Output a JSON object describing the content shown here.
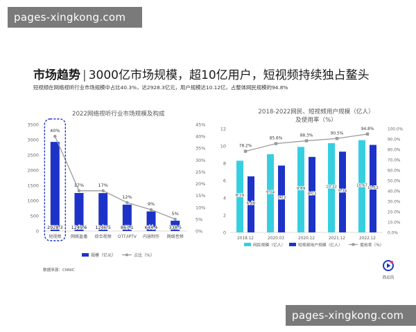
{
  "watermark_top": "pages-xingkong.com",
  "watermark_bottom": "pages-xingkong.com",
  "heading": {
    "bold": "市场趋势",
    "sep": "|",
    "rest": "3000亿市场规模，超10亿用户，短视频持续独占鳌头"
  },
  "subheading": "短视频在网络视听行业市场规模中占比40.3%，达2928.3亿元，用户规模达10.12亿，占整体网民规模的94.8%",
  "source": "数据来源：CNNIC",
  "logo_text": "西瓜风",
  "colors": {
    "cyan": "#36cfe0",
    "navy": "#1d33c8",
    "gray": "#9a9a9a",
    "highlight": "#1d33c8"
  },
  "chart_data": [
    {
      "type": "bar+line",
      "title": "2022网络视听行业市场规模及构成",
      "categories": [
        "短视频",
        "网络直播",
        "综合视频",
        "OTT/IPTV",
        "内容制作",
        "网络音频"
      ],
      "series": [
        {
          "name": "规模（亿元）",
          "type": "bar",
          "axis": "left",
          "values": [
            2928.3,
            1249.6,
            1246.5,
            867.1,
            644.4,
            338.5
          ],
          "labels": [
            "2928.3",
            "1249.6",
            "1246.5",
            "867.1",
            "644.4",
            "338.5"
          ]
        },
        {
          "name": "占比（%）",
          "type": "line",
          "axis": "right",
          "values": [
            40,
            17,
            17,
            12,
            9,
            5
          ],
          "labels": [
            "40%",
            "17%",
            "17%",
            "12%",
            "9%",
            "5%"
          ]
        }
      ],
      "ylim": [
        0,
        3500
      ],
      "yticks": [
        "0",
        "500",
        "1000",
        "1500",
        "2000",
        "2500",
        "3000",
        "3500"
      ],
      "y2lim": [
        0,
        45
      ],
      "y2ticks": [
        "0%",
        "5%",
        "10%",
        "15%",
        "20%",
        "25%",
        "30%",
        "35%",
        "40%",
        "45%"
      ],
      "highlight_category": "短视频",
      "legend_position": "bottom",
      "grid": false
    },
    {
      "type": "bar+line",
      "title": "2018-2022网民、短视频用户规模（亿人）及使用率（%）",
      "categories": [
        "2018.12",
        "2020.03",
        "2020.12",
        "2021.12",
        "2022.12"
      ],
      "series": [
        {
          "name": "网民规模（亿人）",
          "type": "bar",
          "axis": "left",
          "values": [
            8.29,
            9.04,
            9.89,
            10.32,
            10.67
          ],
          "labels": [
            "8.29",
            "9.04",
            "9.89",
            "10.32",
            "10.67"
          ]
        },
        {
          "name": "短视频用户规模（亿人）",
          "type": "bar",
          "axis": "left",
          "values": [
            6.48,
            7.73,
            8.73,
            9.34,
            10.12
          ],
          "labels": [
            "6.48",
            "7.73",
            "8.73",
            "9.34",
            "10.12"
          ]
        },
        {
          "name": "使用率（%）",
          "type": "line",
          "axis": "right",
          "values": [
            78.2,
            85.6,
            88.3,
            90.5,
            94.8
          ],
          "labels": [
            "78.2%",
            "85.6%",
            "88.3%",
            "90.5%",
            "94.8%"
          ]
        }
      ],
      "ylim": [
        0,
        12
      ],
      "yticks": [
        "0",
        "2",
        "4",
        "6",
        "8",
        "10",
        "12"
      ],
      "y2lim": [
        0,
        100
      ],
      "y2ticks": [
        "0.0%",
        "10.0%",
        "20.0%",
        "30.0%",
        "40.0%",
        "50.0%",
        "60.0%",
        "70.0%",
        "80.0%",
        "90.0%",
        "100.0%"
      ],
      "legend_position": "bottom",
      "grid": false
    }
  ]
}
